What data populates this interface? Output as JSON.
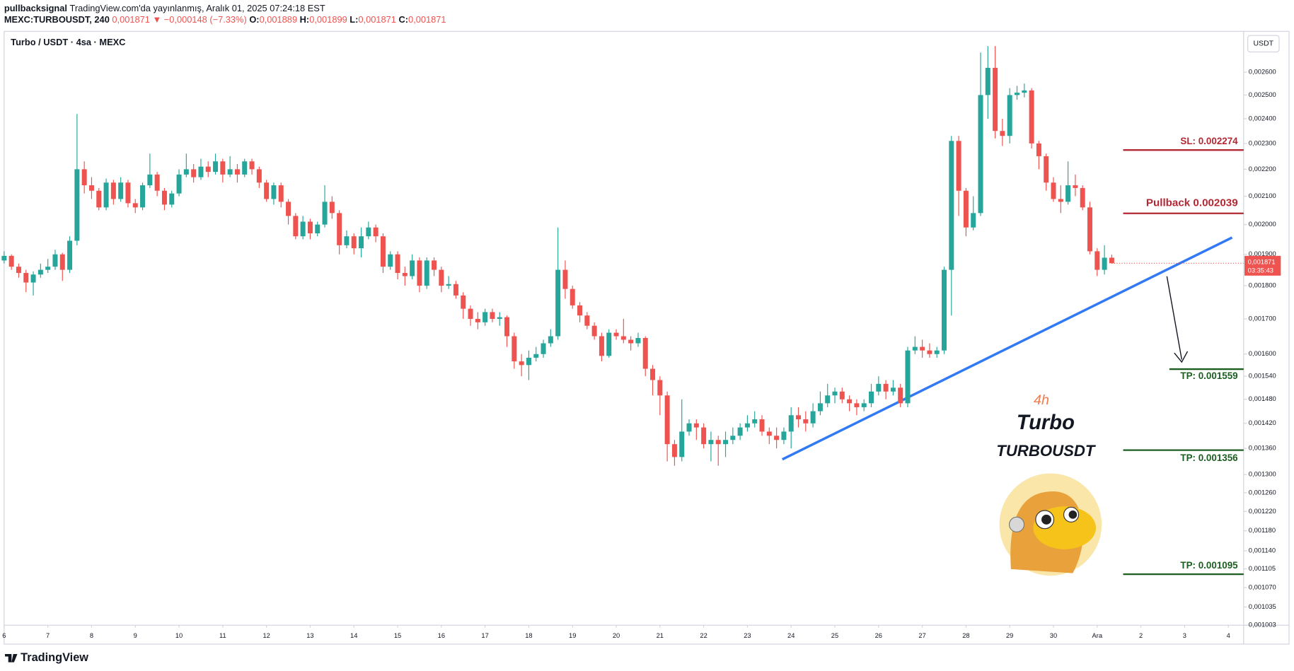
{
  "header": {
    "author": "pullbacksignal",
    "published": "TradingView.com'da yayınlanmış, Aralık 01, 2025 07:24:18 EST",
    "symbol": "MEXC:TURBOUSDT, 240",
    "last": "0,001871",
    "change": "▼ −0,000148 (−7.33%)",
    "o_label": "O:",
    "open": "0,001889",
    "h_label": "H:",
    "high": "0,001899",
    "l_label": "L:",
    "low": "0,001871",
    "c_label": "C:",
    "close": "0,001871"
  },
  "brand": "TradingView",
  "chart_data": {
    "type": "candlestick",
    "title": "Turbo / USDT · 4sa · MEXC",
    "y_unit": "USDT",
    "log": true,
    "up_color": "#26a69a",
    "down_color": "#ef5350",
    "xlim": [
      0,
      170.1
    ],
    "ylim": [
      0.001003,
      0.00279
    ],
    "xticks": [
      {
        "value": 0,
        "label": "6"
      },
      {
        "value": 6,
        "label": "7"
      },
      {
        "value": 12,
        "label": "8"
      },
      {
        "value": 18,
        "label": "9"
      },
      {
        "value": 24,
        "label": "10"
      },
      {
        "value": 30,
        "label": "11"
      },
      {
        "value": 36,
        "label": "12"
      },
      {
        "value": 42,
        "label": "13"
      },
      {
        "value": 48,
        "label": "14"
      },
      {
        "value": 54,
        "label": "15"
      },
      {
        "value": 60,
        "label": "16"
      },
      {
        "value": 66,
        "label": "17"
      },
      {
        "value": 72,
        "label": "18"
      },
      {
        "value": 78,
        "label": "19"
      },
      {
        "value": 84,
        "label": "20"
      },
      {
        "value": 90,
        "label": "21"
      },
      {
        "value": 96,
        "label": "22"
      },
      {
        "value": 102,
        "label": "23"
      },
      {
        "value": 108,
        "label": "24"
      },
      {
        "value": 114,
        "label": "25"
      },
      {
        "value": 120,
        "label": "26"
      },
      {
        "value": 126,
        "label": "27"
      },
      {
        "value": 132,
        "label": "28"
      },
      {
        "value": 138,
        "label": "29"
      },
      {
        "value": 144,
        "label": "30"
      },
      {
        "value": 150,
        "label": "Ara"
      },
      {
        "value": 156,
        "label": "2"
      },
      {
        "value": 162,
        "label": "3"
      },
      {
        "value": 168,
        "label": "4"
      }
    ],
    "yticks": [
      {
        "value": 0.0026,
        "label": "0,002600"
      },
      {
        "value": 0.0025,
        "label": "0,002500"
      },
      {
        "value": 0.0024,
        "label": "0,002400"
      },
      {
        "value": 0.0023,
        "label": "0,002300"
      },
      {
        "value": 0.0022,
        "label": "0,002200"
      },
      {
        "value": 0.0021,
        "label": "0,002100"
      },
      {
        "value": 0.002,
        "label": "0,002000"
      },
      {
        "value": 0.0019,
        "label": "0,001900"
      },
      {
        "value": 0.0018,
        "label": "0,001800"
      },
      {
        "value": 0.0017,
        "label": "0,001700"
      },
      {
        "value": 0.0016,
        "label": "0,001600"
      },
      {
        "value": 0.00154,
        "label": "0,001540"
      },
      {
        "value": 0.00148,
        "label": "0,001480"
      },
      {
        "value": 0.00142,
        "label": "0,001420"
      },
      {
        "value": 0.00136,
        "label": "0,001360"
      },
      {
        "value": 0.0013,
        "label": "0,001300"
      },
      {
        "value": 0.00126,
        "label": "0,001260"
      },
      {
        "value": 0.00122,
        "label": "0,001220"
      },
      {
        "value": 0.00118,
        "label": "0,001180"
      },
      {
        "value": 0.00114,
        "label": "0,001140"
      },
      {
        "value": 0.001105,
        "label": "0,001105"
      },
      {
        "value": 0.00107,
        "label": "0,001070"
      },
      {
        "value": 0.001035,
        "label": "0,001035"
      },
      {
        "value": 0.001003,
        "label": "0,001003"
      }
    ],
    "open": [
      0.00188,
      0.001895,
      0.00186,
      0.00184,
      0.00181,
      0.001835,
      0.00185,
      0.00186,
      0.0019,
      0.00185,
      0.001945,
      0.0022,
      0.00214,
      0.00212,
      0.00206,
      0.00215,
      0.00209,
      0.00215,
      0.002075,
      0.00206,
      0.00214,
      0.00218,
      0.00212,
      0.00207,
      0.00211,
      0.00218,
      0.0022,
      0.00217,
      0.00221,
      0.00219,
      0.00223,
      0.00218,
      0.0022,
      0.00218,
      0.00223,
      0.0022,
      0.00215,
      0.00209,
      0.00214,
      0.00208,
      0.00203,
      0.00196,
      0.00201,
      0.00197,
      0.002,
      0.00208,
      0.00204,
      0.00193,
      0.00196,
      0.00192,
      0.00196,
      0.00199,
      0.00196,
      0.00186,
      0.0019,
      0.00184,
      0.00183,
      0.00188,
      0.0018,
      0.00188,
      0.00185,
      0.0018,
      0.001805,
      0.00177,
      0.00173,
      0.0017,
      0.00169,
      0.00172,
      0.0017,
      0.001705,
      0.00165,
      0.00158,
      0.00157,
      0.00159,
      0.0016,
      0.00163,
      0.00165,
      0.00185,
      0.00179,
      0.00174,
      0.00171,
      0.00168,
      0.00165,
      0.001595,
      0.00166,
      0.00165,
      0.00164,
      0.00163,
      0.001645,
      0.00156,
      0.00153,
      0.00149,
      0.00137,
      0.00134,
      0.0014,
      0.00142,
      0.00141,
      0.00137,
      0.00138,
      0.00137,
      0.00138,
      0.00139,
      0.00141,
      0.00142,
      0.00143,
      0.0014,
      0.00139,
      0.00138,
      0.0014,
      0.00144,
      0.00143,
      0.00142,
      0.00145,
      0.00147,
      0.00149,
      0.0015,
      0.00148,
      0.00147,
      0.00146,
      0.00147,
      0.0015,
      0.00152,
      0.0015,
      0.00151,
      0.00147,
      0.00161,
      0.00162,
      0.00161,
      0.0016,
      0.00161,
      0.00185,
      0.00231,
      0.00212,
      0.00199,
      0.00204,
      0.0025,
      0.00262,
      0.00235,
      0.00233,
      0.0025,
      0.00251,
      0.00252,
      0.0023,
      0.00225,
      0.00215,
      0.00209,
      0.00208,
      0.00214,
      0.00213,
      0.00206,
      0.00191,
      0.00185,
      0.001889
    ],
    "high": [
      0.00191,
      0.0019,
      0.00187,
      0.00185,
      0.001845,
      0.00187,
      0.001885,
      0.001915,
      0.001905,
      0.00196,
      0.00242,
      0.00223,
      0.00217,
      0.00213,
      0.002165,
      0.00216,
      0.00217,
      0.00216,
      0.00209,
      0.00215,
      0.00226,
      0.00219,
      0.00213,
      0.00212,
      0.0022,
      0.00226,
      0.00222,
      0.00224,
      0.00223,
      0.00226,
      0.00224,
      0.00225,
      0.00222,
      0.00224,
      0.00224,
      0.00221,
      0.00216,
      0.00215,
      0.00215,
      0.00209,
      0.00204,
      0.00203,
      0.00202,
      0.00201,
      0.00214,
      0.0021,
      0.00205,
      0.00198,
      0.00197,
      0.00199,
      0.00201,
      0.002,
      0.00197,
      0.00191,
      0.00191,
      0.00186,
      0.0019,
      0.00189,
      0.00189,
      0.00189,
      0.00186,
      0.00183,
      0.001815,
      0.00178,
      0.00174,
      0.00172,
      0.00173,
      0.00173,
      0.00172,
      0.00171,
      0.00166,
      0.0016,
      0.00161,
      0.00162,
      0.00164,
      0.00167,
      0.00199,
      0.00188,
      0.0018,
      0.00175,
      0.00172,
      0.00169,
      0.00166,
      0.00167,
      0.00167,
      0.0017,
      0.00165,
      0.00166,
      0.00165,
      0.00157,
      0.00154,
      0.0015,
      0.00138,
      0.00148,
      0.00143,
      0.00143,
      0.00142,
      0.0014,
      0.00139,
      0.0014,
      0.00141,
      0.00142,
      0.00144,
      0.00145,
      0.00144,
      0.00141,
      0.00141,
      0.00141,
      0.00146,
      0.00146,
      0.00145,
      0.00147,
      0.0015,
      0.00152,
      0.00151,
      0.00151,
      0.00149,
      0.00148,
      0.00148,
      0.00152,
      0.00154,
      0.00153,
      0.00153,
      0.00152,
      0.00162,
      0.00165,
      0.00164,
      0.00163,
      0.00162,
      0.00186,
      0.00233,
      0.00233,
      0.00213,
      0.0021,
      0.00269,
      0.00272,
      0.00272,
      0.0024,
      0.00253,
      0.00254,
      0.00255,
      0.00253,
      0.00231,
      0.00226,
      0.00217,
      0.00214,
      0.00223,
      0.00218,
      0.00214,
      0.00208,
      0.00192,
      0.00193,
      0.001899
    ],
    "low": [
      0.00187,
      0.00185,
      0.001825,
      0.00178,
      0.00177,
      0.001825,
      0.00184,
      0.00185,
      0.001815,
      0.00184,
      0.00193,
      0.00211,
      0.00209,
      0.00205,
      0.00205,
      0.00207,
      0.00208,
      0.00206,
      0.00204,
      0.00205,
      0.00213,
      0.0021,
      0.00205,
      0.00206,
      0.0021,
      0.00217,
      0.00215,
      0.00216,
      0.00217,
      0.00218,
      0.00215,
      0.00217,
      0.00215,
      0.00217,
      0.00218,
      0.00213,
      0.00208,
      0.00207,
      0.00206,
      0.002,
      0.00195,
      0.00195,
      0.00195,
      0.00196,
      0.00199,
      0.00202,
      0.0019,
      0.00192,
      0.0019,
      0.00189,
      0.00195,
      0.00194,
      0.00184,
      0.00185,
      0.00182,
      0.0018,
      0.00182,
      0.00178,
      0.00179,
      0.00183,
      0.00178,
      0.00179,
      0.00176,
      0.0017,
      0.00168,
      0.00167,
      0.00168,
      0.00169,
      0.00168,
      0.00162,
      0.00156,
      0.00154,
      0.00153,
      0.00158,
      0.00159,
      0.00162,
      0.00164,
      0.00176,
      0.00173,
      0.00169,
      0.00167,
      0.00164,
      0.00158,
      0.00159,
      0.00164,
      0.00163,
      0.00161,
      0.00162,
      0.00154,
      0.00149,
      0.00144,
      0.00133,
      0.00132,
      0.00133,
      0.00139,
      0.00138,
      0.00136,
      0.00133,
      0.00132,
      0.00134,
      0.00137,
      0.00138,
      0.0014,
      0.00141,
      0.00139,
      0.00137,
      0.00136,
      0.00137,
      0.00136,
      0.00141,
      0.0014,
      0.00141,
      0.00144,
      0.00146,
      0.00147,
      0.00147,
      0.00145,
      0.00144,
      0.00145,
      0.00146,
      0.00149,
      0.00148,
      0.00149,
      0.00146,
      0.00146,
      0.0016,
      0.00159,
      0.00159,
      0.00159,
      0.0016,
      0.00171,
      0.00203,
      0.00196,
      0.00198,
      0.00203,
      0.0024,
      0.00232,
      0.00229,
      0.0023,
      0.00248,
      0.00249,
      0.00228,
      0.0022,
      0.00212,
      0.00208,
      0.00204,
      0.00207,
      0.0021,
      0.00205,
      0.0019,
      0.00183,
      0.001835,
      0.001871
    ],
    "close": [
      0.001895,
      0.00186,
      0.00184,
      0.00181,
      0.001835,
      0.00185,
      0.00186,
      0.0019,
      0.00185,
      0.001945,
      0.0022,
      0.00214,
      0.00212,
      0.00206,
      0.00215,
      0.00209,
      0.00215,
      0.002075,
      0.00206,
      0.00214,
      0.00218,
      0.00212,
      0.00207,
      0.00211,
      0.00218,
      0.0022,
      0.00217,
      0.00221,
      0.00219,
      0.00223,
      0.00218,
      0.0022,
      0.00218,
      0.00223,
      0.0022,
      0.00215,
      0.00209,
      0.00214,
      0.00208,
      0.00203,
      0.00196,
      0.00201,
      0.00197,
      0.002,
      0.00208,
      0.00204,
      0.00193,
      0.00196,
      0.00192,
      0.00196,
      0.00199,
      0.00196,
      0.00186,
      0.0019,
      0.00184,
      0.00183,
      0.00188,
      0.0018,
      0.00188,
      0.00185,
      0.0018,
      0.001805,
      0.00177,
      0.00173,
      0.0017,
      0.00169,
      0.00172,
      0.0017,
      0.001705,
      0.00165,
      0.00158,
      0.00157,
      0.00159,
      0.0016,
      0.00163,
      0.00165,
      0.00185,
      0.00179,
      0.00174,
      0.00171,
      0.00168,
      0.00165,
      0.001595,
      0.00166,
      0.00165,
      0.00164,
      0.00163,
      0.001645,
      0.00156,
      0.00153,
      0.00149,
      0.00137,
      0.00134,
      0.0014,
      0.00142,
      0.00141,
      0.00137,
      0.00138,
      0.00137,
      0.00138,
      0.00139,
      0.00141,
      0.00142,
      0.00143,
      0.0014,
      0.00139,
      0.00138,
      0.0014,
      0.00144,
      0.00143,
      0.00142,
      0.00145,
      0.00147,
      0.00149,
      0.0015,
      0.00148,
      0.00147,
      0.00146,
      0.00147,
      0.0015,
      0.00152,
      0.0015,
      0.00151,
      0.00147,
      0.00161,
      0.00162,
      0.00161,
      0.0016,
      0.00161,
      0.00185,
      0.00231,
      0.00212,
      0.00199,
      0.00204,
      0.0025,
      0.00262,
      0.00235,
      0.00233,
      0.0025,
      0.00251,
      0.00252,
      0.0023,
      0.00225,
      0.00215,
      0.00209,
      0.00208,
      0.00214,
      0.00213,
      0.00206,
      0.00191,
      0.00185,
      0.001889,
      0.001871
    ],
    "levels": [
      {
        "label": "SL: 0.002274",
        "value": 0.002274,
        "color": "#b22833"
      },
      {
        "label": "Pullback 0.002039",
        "value": 0.002039,
        "color": "#b22833"
      },
      {
        "label": "TP: 0.001559",
        "value": 0.001559,
        "color": "#1b5e20"
      },
      {
        "label": "TP: 0.001356",
        "value": 0.001356,
        "color": "#1b5e20"
      },
      {
        "label": "TP: 0.001095",
        "value": 0.001095,
        "color": "#1b5e20"
      }
    ],
    "last_price": {
      "value": 0.001871,
      "label": "0,001871"
    },
    "countdown": "03:35:43",
    "annotations": {
      "timeframe": "4h",
      "name": "Turbo",
      "ticker": "TURBOUSDT"
    }
  }
}
